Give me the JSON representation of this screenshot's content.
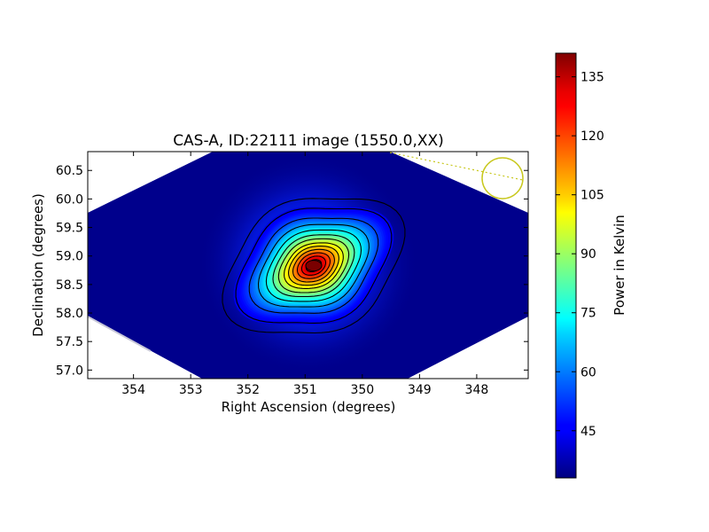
{
  "chart_data": {
    "type": "heatmap",
    "title": "CAS-A, ID:22111 image (1550.0,XX)",
    "xlabel": "Right Ascension (degrees)",
    "ylabel": "Declination (degrees)",
    "x_ticks": [
      "354",
      "353",
      "352",
      "351",
      "350",
      "349",
      "348"
    ],
    "y_ticks": [
      "57.0",
      "57.5",
      "58.0",
      "58.5",
      "59.0",
      "59.5",
      "60.0",
      "60.5"
    ],
    "xlim": [
      354.8,
      347.1
    ],
    "ylim": [
      56.85,
      60.83
    ],
    "colorbar": {
      "label": "Power in Kelvin",
      "ticks": [
        "45",
        "60",
        "75",
        "90",
        "105",
        "120",
        "135"
      ],
      "range": [
        33,
        141
      ],
      "colormap": "jet"
    },
    "source_peak": {
      "ra": 350.85,
      "dec": 58.83,
      "value": 141
    },
    "background_value": 36,
    "grid": false,
    "contours": true,
    "beam_marker_color": "#c8c81e"
  }
}
